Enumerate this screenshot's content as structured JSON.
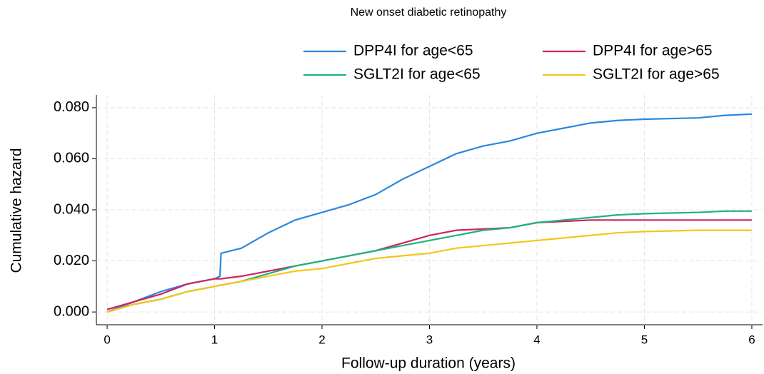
{
  "chart_data": {
    "type": "line",
    "title": "New onset diabetic retinopathy",
    "x_label": "Follow-up duration (years)",
    "y_label": "Cumulative hazard",
    "x": [
      0,
      0.25,
      0.5,
      0.75,
      1.0,
      1.05,
      1.06,
      1.25,
      1.5,
      1.75,
      2.0,
      2.25,
      2.5,
      2.75,
      3.0,
      3.25,
      3.5,
      3.75,
      4.0,
      4.25,
      4.5,
      4.75,
      5.0,
      5.5,
      5.75,
      6.0
    ],
    "series": [
      {
        "name": "DPP4I for age<65",
        "color": "#2a88e0",
        "values": [
          0.0,
          0.004,
          0.008,
          0.011,
          0.013,
          0.014,
          0.023,
          0.025,
          0.031,
          0.036,
          0.039,
          0.042,
          0.046,
          0.052,
          0.057,
          0.062,
          0.065,
          0.067,
          0.07,
          0.072,
          0.074,
          0.075,
          0.0755,
          0.076,
          0.077,
          0.0775
        ]
      },
      {
        "name": "DPP4I for age>65",
        "color": "#cf2461",
        "values": [
          0.001,
          0.004,
          0.007,
          0.011,
          0.013,
          0.013,
          0.013,
          0.014,
          0.016,
          0.018,
          0.02,
          0.022,
          0.024,
          0.027,
          0.03,
          0.032,
          0.0325,
          0.033,
          0.035,
          0.0355,
          0.036,
          0.036,
          0.036,
          0.036,
          0.036,
          0.036
        ]
      },
      {
        "name": "SGLT2I for age<65",
        "color": "#1bb47e",
        "values": [
          0.0,
          0.003,
          0.005,
          0.008,
          0.01,
          0.0105,
          0.0105,
          0.012,
          0.015,
          0.018,
          0.02,
          0.022,
          0.024,
          0.026,
          0.028,
          0.03,
          0.032,
          0.033,
          0.035,
          0.036,
          0.037,
          0.038,
          0.0385,
          0.039,
          0.0395,
          0.0395
        ]
      },
      {
        "name": "SGLT2I for age>65",
        "color": "#f4c61a",
        "values": [
          0.0,
          0.003,
          0.005,
          0.008,
          0.01,
          0.0105,
          0.0105,
          0.012,
          0.014,
          0.016,
          0.017,
          0.019,
          0.021,
          0.022,
          0.023,
          0.025,
          0.026,
          0.027,
          0.028,
          0.029,
          0.03,
          0.031,
          0.0315,
          0.032,
          0.032,
          0.032
        ]
      }
    ],
    "xlim": [
      -0.1,
      6.1
    ],
    "xticks": [
      0,
      1,
      2,
      3,
      4,
      5,
      6
    ],
    "ylim": [
      -0.005,
      0.085
    ],
    "yticks": [
      {
        "value": 0,
        "label": "0.000"
      },
      {
        "value": 0.02,
        "label": "0.020"
      },
      {
        "value": 0.04,
        "label": "0.040"
      },
      {
        "value": 0.06,
        "label": "0.060"
      },
      {
        "value": 0.08,
        "label": "0.080"
      }
    ],
    "grid": true,
    "legend": "top"
  }
}
